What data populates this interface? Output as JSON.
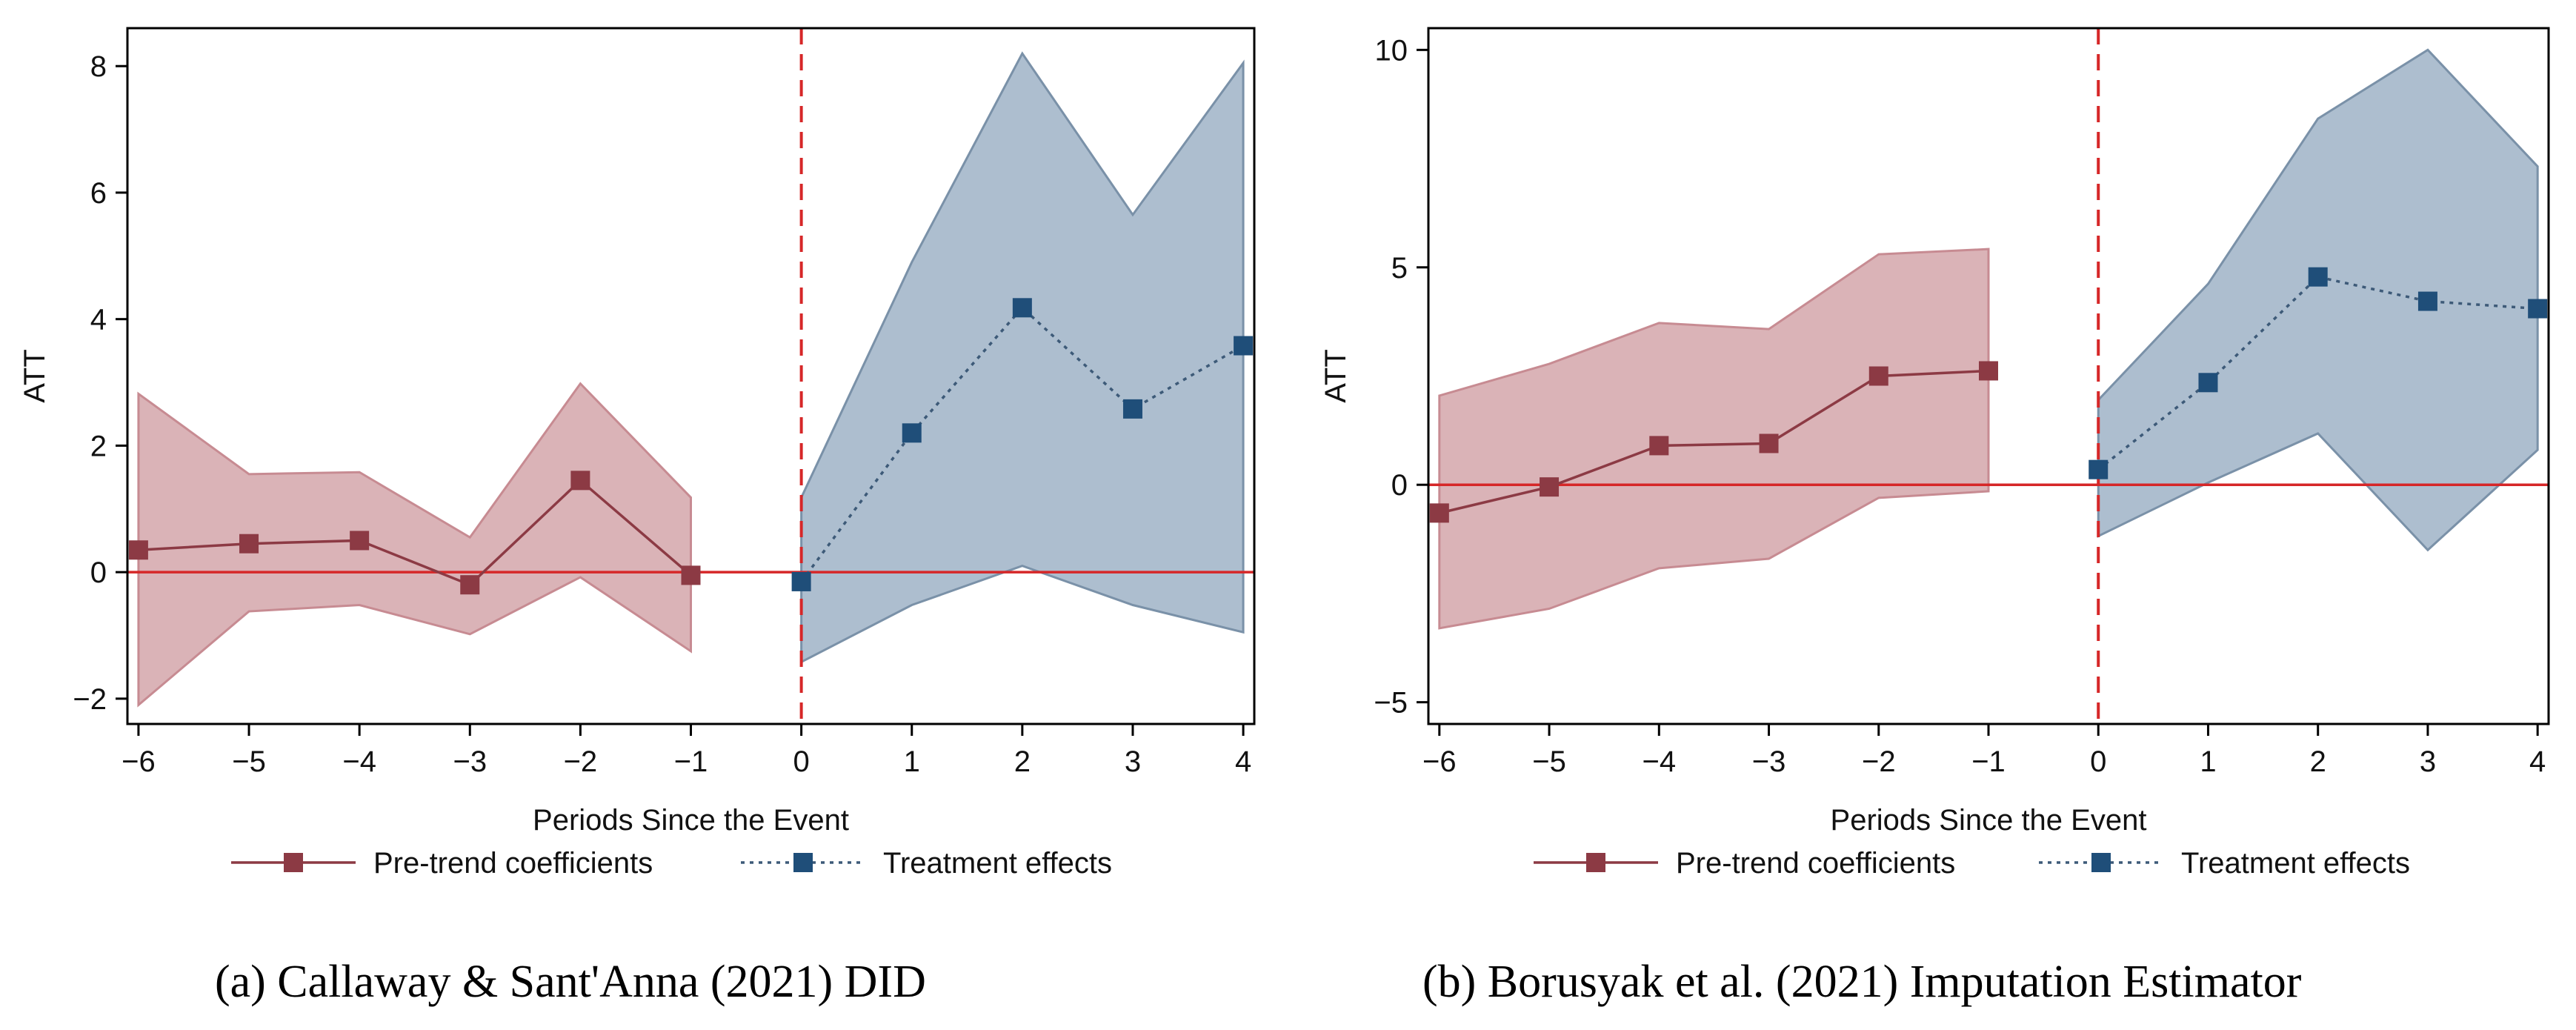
{
  "chart_data": [
    {
      "type": "line",
      "panel": "a",
      "caption": "(a) Callaway & Sant'Anna (2021) DID",
      "xlabel": "Periods Since the Event",
      "ylabel": "ATT",
      "xlim": [
        -6.1,
        4.1
      ],
      "ylim": [
        -2.4,
        8.6
      ],
      "x_ticks": [
        -6,
        -5,
        -4,
        -3,
        -2,
        -1,
        0,
        1,
        2,
        3,
        4
      ],
      "x_tick_labels": [
        "−6",
        "−5",
        "−4",
        "−3",
        "−2",
        "−1",
        "0",
        "1",
        "2",
        "3",
        "4"
      ],
      "y_ticks": [
        -2,
        0,
        2,
        4,
        6,
        8
      ],
      "y_tick_labels": [
        "−2",
        "0",
        "2",
        "4",
        "6",
        "8"
      ],
      "reference_line_y": 0,
      "event_line_x": 0,
      "legend": [
        "Pre-trend coefficients",
        "Treatment effects"
      ],
      "legend_position": "bottom",
      "colors": {
        "pre": "#8c3a44",
        "pre_fill": "#d4a6aa",
        "post": "#1f4e79",
        "post_fill": "#a9bbcc",
        "post_edge": "#7a91a8",
        "ref": "#d62728"
      },
      "series": [
        {
          "name": "Pre-trend coefficients",
          "x": [
            -6,
            -5,
            -4,
            -3,
            -2,
            -1
          ],
          "y": [
            0.35,
            0.45,
            0.5,
            -0.2,
            1.45,
            -0.05
          ],
          "ci_low": [
            -2.1,
            -0.62,
            -0.52,
            -0.98,
            -0.08,
            -1.25
          ],
          "ci_high": [
            2.82,
            1.55,
            1.58,
            0.55,
            2.98,
            1.18
          ]
        },
        {
          "name": "Treatment effects",
          "x": [
            0,
            1,
            2,
            3,
            4
          ],
          "y": [
            -0.15,
            2.2,
            4.18,
            2.58,
            3.58
          ],
          "ci_low": [
            -1.42,
            -0.52,
            0.1,
            -0.52,
            -0.95
          ],
          "ci_high": [
            1.18,
            4.9,
            8.2,
            5.65,
            8.05
          ]
        }
      ]
    },
    {
      "type": "line",
      "panel": "b",
      "caption": "(b) Borusyak et al. (2021) Imputation Estimator",
      "xlabel": "Periods Since the Event",
      "ylabel": "ATT",
      "xlim": [
        -6.1,
        4.1
      ],
      "ylim": [
        -5.5,
        10.5
      ],
      "x_ticks": [
        -6,
        -5,
        -4,
        -3,
        -2,
        -1,
        0,
        1,
        2,
        3,
        4
      ],
      "x_tick_labels": [
        "−6",
        "−5",
        "−4",
        "−3",
        "−2",
        "−1",
        "0",
        "1",
        "2",
        "3",
        "4"
      ],
      "y_ticks": [
        -5,
        0,
        5,
        10
      ],
      "y_tick_labels": [
        "−5",
        "0",
        "5",
        "10"
      ],
      "reference_line_y": 0,
      "event_line_x": 0,
      "legend": [
        "Pre-trend coefficients",
        "Treatment effects"
      ],
      "legend_position": "bottom",
      "colors": {
        "pre": "#8c3a44",
        "pre_fill": "#d4a6aa",
        "post": "#1f4e79",
        "post_fill": "#a9bbcc",
        "post_edge": "#7a91a8",
        "ref": "#d62728"
      },
      "series": [
        {
          "name": "Pre-trend coefficients",
          "x": [
            -6,
            -5,
            -4,
            -3,
            -2,
            -1
          ],
          "y": [
            -0.65,
            -0.05,
            0.9,
            0.95,
            2.5,
            2.62
          ],
          "ci_low": [
            -3.3,
            -2.85,
            -1.92,
            -1.7,
            -0.3,
            -0.15
          ],
          "ci_high": [
            2.05,
            2.78,
            3.72,
            3.58,
            5.3,
            5.42
          ]
        },
        {
          "name": "Treatment effects",
          "x": [
            0,
            1,
            2,
            3,
            4
          ],
          "y": [
            0.35,
            2.35,
            4.78,
            4.22,
            4.05
          ],
          "ci_low": [
            -1.18,
            0.05,
            1.18,
            -1.5,
            0.8
          ],
          "ci_high": [
            1.95,
            4.62,
            8.42,
            10.0,
            7.32
          ]
        }
      ]
    }
  ]
}
